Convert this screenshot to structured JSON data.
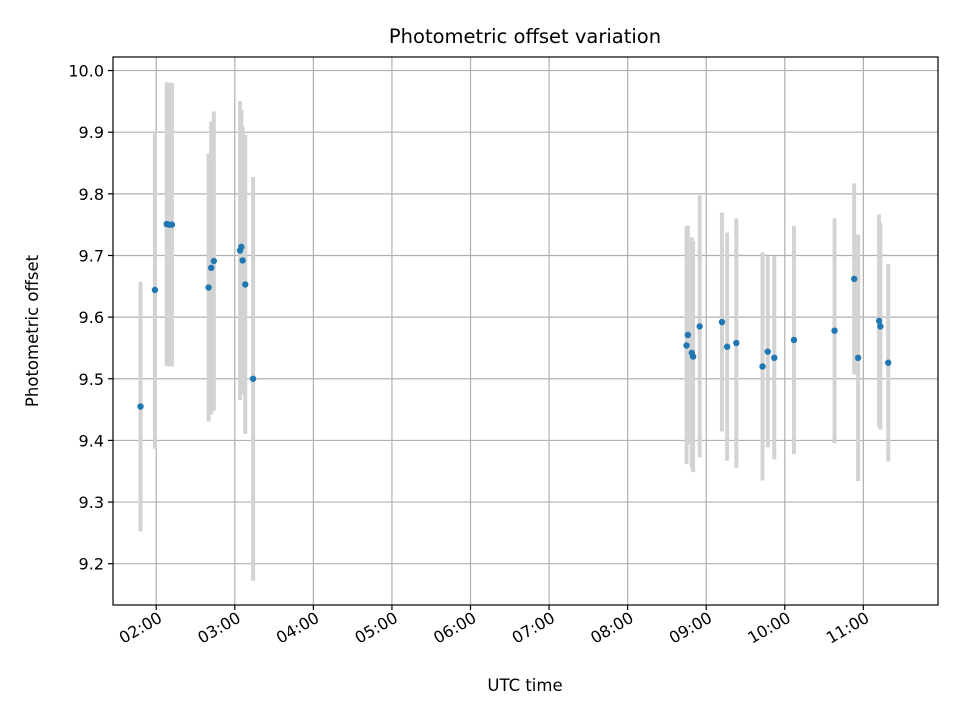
{
  "chart_data": {
    "type": "scatter",
    "title": "Photometric offset variation",
    "xlabel": "UTC time",
    "ylabel": "Photometric offset",
    "x_unit": "hours UTC",
    "xlim": [
      "01:27",
      "11:57"
    ],
    "ylim": [
      9.133,
      10.022
    ],
    "x_ticks": [
      "02:00",
      "03:00",
      "04:00",
      "05:00",
      "06:00",
      "07:00",
      "08:00",
      "09:00",
      "10:00",
      "11:00"
    ],
    "y_ticks": [
      "9.2",
      "9.3",
      "9.4",
      "9.5",
      "9.6",
      "9.7",
      "9.8",
      "9.9",
      "10.0"
    ],
    "grid": true,
    "marker_color": "#1f77b4",
    "errorbar_color": "#d3d3d3",
    "series": [
      {
        "points": [
          {
            "x": "01:48",
            "y": 9.455,
            "err": 0.2025
          },
          {
            "x": "01:59",
            "y": 9.644,
            "err": 0.2575
          },
          {
            "x": "02:08",
            "y": 9.751,
            "err": 0.23
          },
          {
            "x": "02:10",
            "y": 9.75,
            "err": 0.23
          },
          {
            "x": "02:12",
            "y": 9.75,
            "err": 0.23
          },
          {
            "x": "02:40",
            "y": 9.648,
            "err": 0.2175
          },
          {
            "x": "02:42",
            "y": 9.68,
            "err": 0.2375
          },
          {
            "x": "02:44",
            "y": 9.691,
            "err": 0.2425
          },
          {
            "x": "03:04",
            "y": 9.708,
            "err": 0.2425
          },
          {
            "x": "03:05",
            "y": 9.714,
            "err": 0.2225
          },
          {
            "x": "03:06",
            "y": 9.692,
            "err": 0.2175
          },
          {
            "x": "03:08",
            "y": 9.653,
            "err": 0.2425
          },
          {
            "x": "03:14",
            "y": 9.5,
            "err": 0.3275
          },
          {
            "x": "08:45",
            "y": 9.554,
            "err": 0.1925
          },
          {
            "x": "08:46",
            "y": 9.571,
            "err": 0.1775
          },
          {
            "x": "08:49",
            "y": 9.542,
            "err": 0.1875
          },
          {
            "x": "08:50",
            "y": 9.536,
            "err": 0.1875
          },
          {
            "x": "08:55",
            "y": 9.585,
            "err": 0.2125
          },
          {
            "x": "09:12",
            "y": 9.592,
            "err": 0.1775
          },
          {
            "x": "09:16",
            "y": 9.552,
            "err": 0.185
          },
          {
            "x": "09:23",
            "y": 9.558,
            "err": 0.2025
          },
          {
            "x": "09:43",
            "y": 9.52,
            "err": 0.185
          },
          {
            "x": "09:47",
            "y": 9.544,
            "err": 0.155
          },
          {
            "x": "09:52",
            "y": 9.534,
            "err": 0.165
          },
          {
            "x": "10:07",
            "y": 9.563,
            "err": 0.185
          },
          {
            "x": "10:38",
            "y": 9.578,
            "err": 0.1825
          },
          {
            "x": "10:53",
            "y": 9.662,
            "err": 0.155
          },
          {
            "x": "10:56",
            "y": 9.534,
            "err": 0.2
          },
          {
            "x": "11:12",
            "y": 9.594,
            "err": 0.1725
          },
          {
            "x": "11:13",
            "y": 9.585,
            "err": 0.1675
          },
          {
            "x": "11:19",
            "y": 9.526,
            "err": 0.16
          }
        ]
      }
    ]
  }
}
